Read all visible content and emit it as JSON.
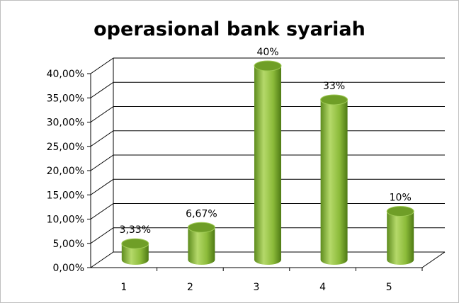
{
  "chart_data": {
    "type": "bar",
    "title": "operasional bank syariah",
    "categories": [
      "1",
      "2",
      "3",
      "4",
      "5"
    ],
    "values": [
      3.33,
      6.67,
      40,
      33,
      10
    ],
    "data_labels": [
      "3,33%",
      "6,67%",
      "40%",
      "33%",
      "10%"
    ],
    "yticks": [
      "0,00%",
      "5,00%",
      "10,00%",
      "15,00%",
      "20,00%",
      "25,00%",
      "30,00%",
      "35,00%",
      "40,00%"
    ],
    "ylim": [
      0,
      40
    ],
    "xlabel": "",
    "ylabel": "",
    "grid": true,
    "style": "3d-cylinder",
    "colors": {
      "bar_light": "#b5d96a",
      "bar_mid": "#8cbb3a",
      "bar_dark": "#4e7a14",
      "bar_top": "#6f9e27",
      "grid": "#000000"
    }
  }
}
